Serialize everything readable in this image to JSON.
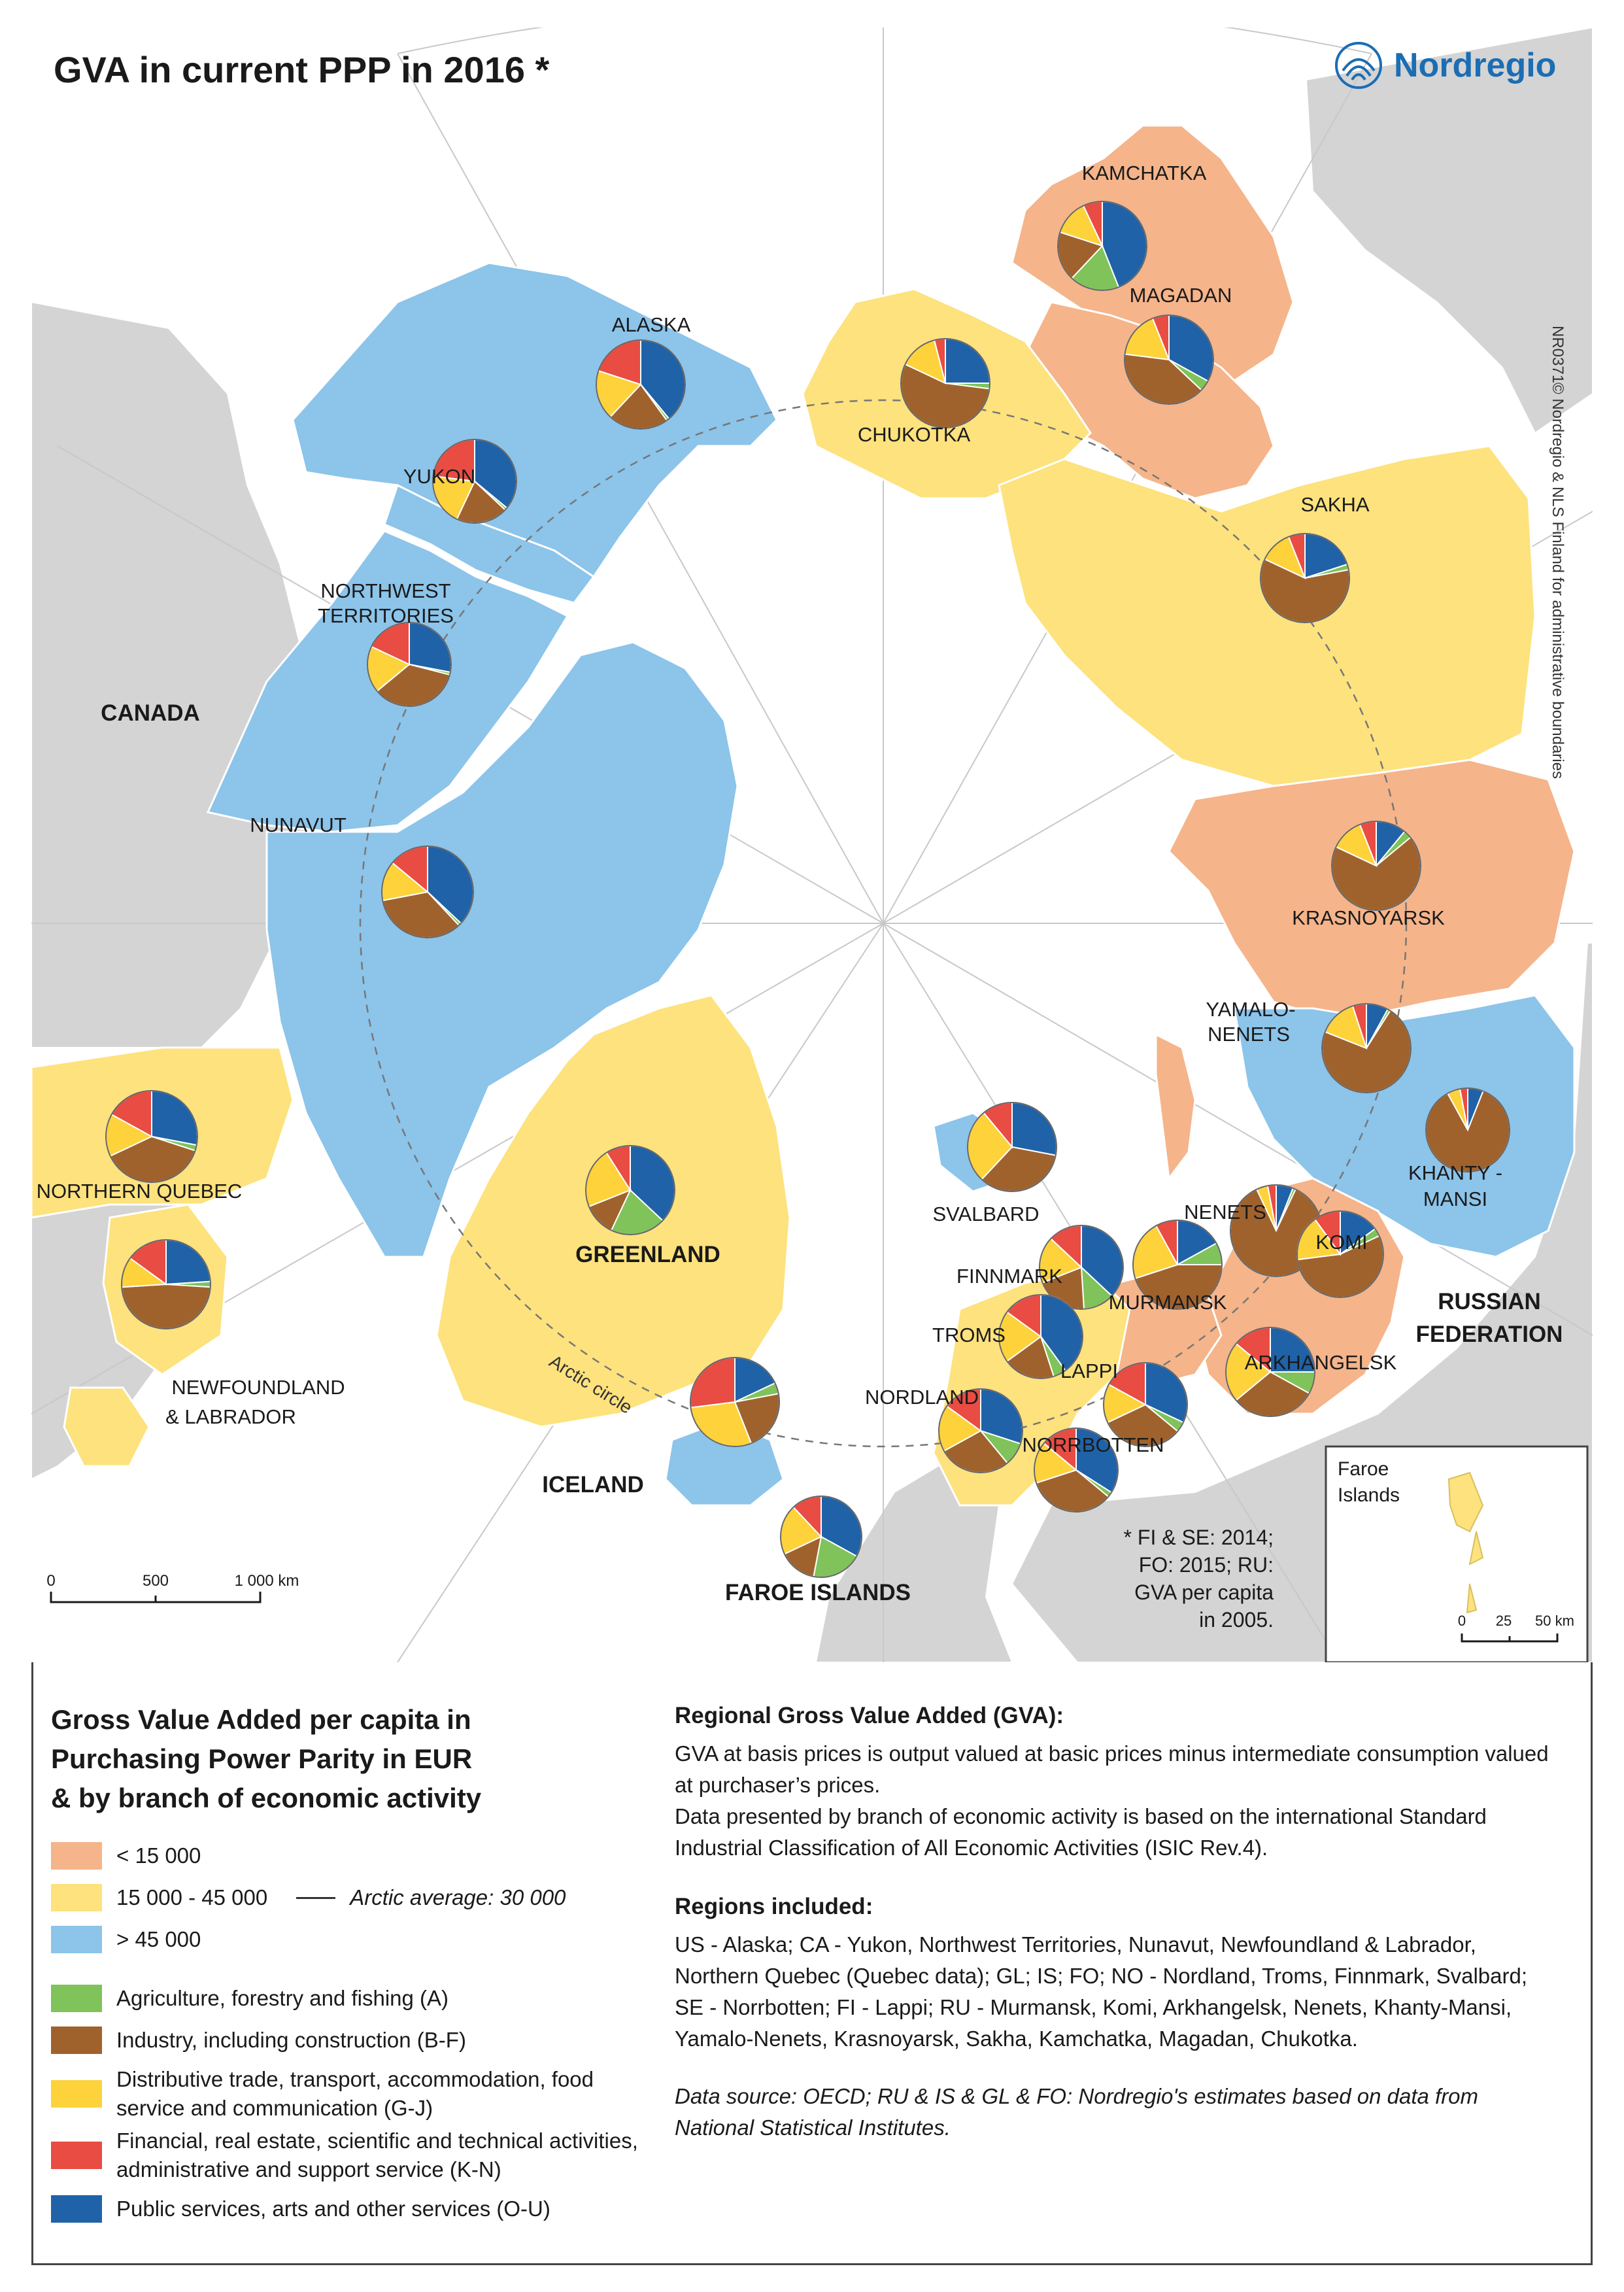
{
  "title": "GVA  in current PPP in 2016 *",
  "logo": {
    "name": "Nordregio",
    "icon": "nordregio-logo-icon"
  },
  "map_code": "NR0371",
  "copyright": "© Nordregio & NLS Finland for administrative boundaries",
  "colors": {
    "sea": "#ffffff",
    "land_other": "#d4d4d4",
    "low": "#f5b48a",
    "mid": "#fde27d",
    "high": "#8cc4ea",
    "agri": "#7fc35a",
    "industry": "#a0622d",
    "trade": "#fdd23b",
    "finance": "#e84c43",
    "public": "#2062a7"
  },
  "country_labels": [
    "CANADA",
    "RUSSIAN FEDERATION",
    "ICELAND",
    "GREENLAND",
    "FAROE ISLANDS"
  ],
  "graticule_label": "Arctic circle",
  "regions": [
    {
      "name": "ALASKA",
      "class": "high",
      "shares": {
        "agri": 1,
        "industry": 22,
        "trade": 18,
        "finance": 20,
        "public": 39
      }
    },
    {
      "name": "YUKON",
      "class": "high",
      "shares": {
        "agri": 1,
        "industry": 20,
        "trade": 20,
        "finance": 23,
        "public": 36
      }
    },
    {
      "name": "NORTHWEST TERRITORIES",
      "class": "high",
      "shares": {
        "agri": 1,
        "industry": 35,
        "trade": 18,
        "finance": 18,
        "public": 28
      }
    },
    {
      "name": "NUNAVUT",
      "class": "high",
      "shares": {
        "agri": 1,
        "industry": 34,
        "trade": 14,
        "finance": 14,
        "public": 37
      }
    },
    {
      "name": "NORTHERN QUEBEC",
      "class": "mid",
      "shares": {
        "agri": 2,
        "industry": 38,
        "trade": 15,
        "finance": 17,
        "public": 28
      }
    },
    {
      "name": "NEWFOUNDLAND & LABRADOR",
      "class": "mid",
      "shares": {
        "agri": 2,
        "industry": 48,
        "trade": 11,
        "finance": 15,
        "public": 24
      }
    },
    {
      "name": "GREENLAND",
      "class": "mid",
      "shares": {
        "agri": 20,
        "industry": 12,
        "trade": 22,
        "finance": 9,
        "public": 37
      }
    },
    {
      "name": "ICELAND",
      "class": "high",
      "shares": {
        "agri": 4,
        "industry": 22,
        "trade": 29,
        "finance": 27,
        "public": 18
      }
    },
    {
      "name": "FAROE ISLANDS",
      "class": "mid",
      "shares": {
        "agri": 20,
        "industry": 15,
        "trade": 20,
        "finance": 12,
        "public": 33
      }
    },
    {
      "name": "SVALBARD",
      "class": "high",
      "shares": {
        "agri": 0,
        "industry": 34,
        "trade": 27,
        "finance": 11,
        "public": 28
      }
    },
    {
      "name": "FINNMARK",
      "class": "mid",
      "shares": {
        "agri": 12,
        "industry": 20,
        "trade": 18,
        "finance": 13,
        "public": 37
      }
    },
    {
      "name": "TROMS",
      "class": "mid",
      "shares": {
        "agri": 5,
        "industry": 20,
        "trade": 20,
        "finance": 15,
        "public": 40
      }
    },
    {
      "name": "NORDLAND",
      "class": "mid",
      "shares": {
        "agri": 9,
        "industry": 28,
        "trade": 18,
        "finance": 15,
        "public": 30
      }
    },
    {
      "name": "NORRBOTTEN",
      "class": "mid",
      "shares": {
        "agri": 2,
        "industry": 34,
        "trade": 16,
        "finance": 14,
        "public": 34
      }
    },
    {
      "name": "LAPPI",
      "class": "mid",
      "shares": {
        "agri": 4,
        "industry": 32,
        "trade": 15,
        "finance": 17,
        "public": 32
      }
    },
    {
      "name": "MURMANSK",
      "class": "low",
      "shares": {
        "agri": 8,
        "industry": 45,
        "trade": 22,
        "finance": 8,
        "public": 17
      }
    },
    {
      "name": "NENETS",
      "class": "low",
      "shares": {
        "agri": 1,
        "industry": 86,
        "trade": 4,
        "finance": 3,
        "public": 6
      }
    },
    {
      "name": "KOMI",
      "class": "low",
      "shares": {
        "agri": 3,
        "industry": 55,
        "trade": 17,
        "finance": 10,
        "public": 15
      }
    },
    {
      "name": "ARKHANGELSK",
      "class": "low",
      "shares": {
        "agri": 8,
        "industry": 31,
        "trade": 22,
        "finance": 14,
        "public": 25
      }
    },
    {
      "name": "KHANTY - MANSI",
      "class": "high",
      "shares": {
        "agri": 0,
        "industry": 86,
        "trade": 5,
        "finance": 3,
        "public": 6
      }
    },
    {
      "name": "YAMALO-NENETS",
      "class": "high",
      "shares": {
        "agri": 1,
        "industry": 72,
        "trade": 14,
        "finance": 5,
        "public": 8
      }
    },
    {
      "name": "KRASNOYARSK",
      "class": "low",
      "shares": {
        "agri": 3,
        "industry": 68,
        "trade": 12,
        "finance": 6,
        "public": 11
      }
    },
    {
      "name": "SAKHA",
      "class": "mid",
      "shares": {
        "agri": 2,
        "industry": 60,
        "trade": 12,
        "finance": 6,
        "public": 20
      }
    },
    {
      "name": "CHUKOTKA",
      "class": "mid",
      "shares": {
        "agri": 2,
        "industry": 55,
        "trade": 14,
        "finance": 4,
        "public": 25
      }
    },
    {
      "name": "MAGADAN",
      "class": "low",
      "shares": {
        "agri": 4,
        "industry": 40,
        "trade": 17,
        "finance": 6,
        "public": 33
      }
    },
    {
      "name": "KAMCHATKA",
      "class": "low",
      "shares": {
        "agri": 18,
        "industry": 18,
        "trade": 13,
        "finance": 7,
        "public": 44
      }
    }
  ],
  "footnote": [
    "* FI & SE: 2014;",
    "FO: 2015; RU:",
    "GVA per capita",
    "in 2005."
  ],
  "scale_bar": {
    "ticks": [
      "0",
      "500",
      "1 000 km"
    ]
  },
  "inset": {
    "title_line1": "Faroe",
    "title_line2": "Islands",
    "ticks": [
      "0",
      "25",
      "50 km"
    ]
  },
  "legend": {
    "title_lines": [
      "Gross Value Added per capita in",
      "Purchasing Power Parity in EUR",
      "& by branch of economic activity"
    ],
    "classes": [
      {
        "label": "< 15 000",
        "color": "#f5b48a"
      },
      {
        "label": "15 000 - 45 000",
        "color": "#fde27d"
      },
      {
        "label": "> 45 000",
        "color": "#8cc4ea"
      }
    ],
    "arctic_average": "Arctic average: 30 000",
    "branches": [
      {
        "label": "Agriculture, forestry and fishing (A)",
        "color": "#7fc35a"
      },
      {
        "label": "Industry, including construction (B-F)",
        "color": "#a0622d"
      },
      {
        "label": "Distributive trade, transport, accommodation, food service and communication (G-J)",
        "color": "#fdd23b"
      },
      {
        "label": "Financial, real estate, scientific and technical activities, administrative and support service (K-N)",
        "color": "#e84c43"
      },
      {
        "label": "Public services, arts and other services (O-U)",
        "color": "#2062a7"
      }
    ]
  },
  "info": {
    "gva_heading": "Regional Gross Value Added (GVA):",
    "gva_text_1": "GVA at basis prices is output valued at basic prices minus intermediate consumption valued at purchaser’s prices.",
    "gva_text_2": "Data presented by branch of economic activity is based on the international Standard Industrial Classification of All Economic Activities (ISIC Rev.4).",
    "regions_heading": "Regions included:",
    "regions_text": "US - Alaska; CA - Yukon, Northwest Territories, Nunavut, Newfoundland & Labrador, Northern Quebec (Quebec data); GL; IS; FO; NO - Nordland, Troms, Finnmark, Svalbard; SE - Norrbotten; FI - Lappi; RU - Murmansk, Komi, Arkhangelsk, Nenets, Khanty-Mansi, Yamalo-Nenets, Krasnoyarsk, Sakha, Kamchatka, Magadan, Chukotka.",
    "source": "Data source: OECD; RU & IS & GL & FO: Nordregio's estimates based on data from National Statistical Institutes."
  }
}
